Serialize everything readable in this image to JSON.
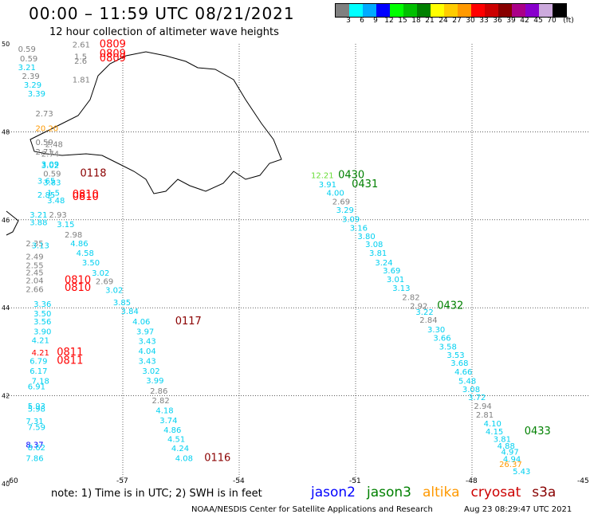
{
  "title": "00:00 – 11:59 UTC 08/21/2021",
  "subtitle": "12 hour collection of altimeter wave heights",
  "scale": {
    "colors": [
      "#808080",
      "#00ffff",
      "#00aaff",
      "#0000ff",
      "#00ff00",
      "#00c000",
      "#008000",
      "#ffff00",
      "#ffcc00",
      "#ff9900",
      "#ff0000",
      "#cc0000",
      "#880000",
      "#aa0088",
      "#8800cc",
      "#ccaadd",
      "#000000"
    ],
    "labels": [
      "3",
      "6",
      "9",
      "12",
      "15",
      "18",
      "21",
      "24",
      "27",
      "30",
      "33",
      "36",
      "39",
      "42",
      "45",
      "70",
      "(ft)"
    ]
  },
  "axes": {
    "lat_labels": [
      "50",
      "48",
      "46",
      "44",
      "42",
      "40"
    ],
    "lon_labels": [
      "-60",
      "-57",
      "-54",
      "-51",
      "-48",
      "-45"
    ]
  },
  "colors": {
    "cyan": "#00d0f0",
    "gray": "#808080",
    "darkred": "#8b0000",
    "red": "#ff0000",
    "green": "#008000",
    "lightgreen": "#66dd33",
    "orange": "#ff9900",
    "blue": "#0000ff"
  },
  "labels": [
    {
      "t": "0.59",
      "c": "gray",
      "lon": -59.7,
      "lat": 49.82
    },
    {
      "t": "0.59",
      "c": "gray",
      "lon": -59.65,
      "lat": 49.6
    },
    {
      "t": "3.21",
      "c": "cyan",
      "lon": -59.7,
      "lat": 49.4
    },
    {
      "t": "2.39",
      "c": "gray",
      "lon": -59.6,
      "lat": 49.2
    },
    {
      "t": "3.29",
      "c": "cyan",
      "lon": -59.55,
      "lat": 49.0
    },
    {
      "t": "3.39",
      "c": "cyan",
      "lon": -59.45,
      "lat": 48.8
    },
    {
      "t": "2.73",
      "c": "gray",
      "lon": -59.25,
      "lat": 48.35
    },
    {
      "t": "20.20",
      "c": "orange",
      "lon": -59.25,
      "lat": 48.02
    },
    {
      "t": "2.61",
      "c": "gray",
      "lon": -58.3,
      "lat": 49.92
    },
    {
      "t": "1.5",
      "c": "gray",
      "lon": -58.25,
      "lat": 49.65
    },
    {
      "t": "2.6",
      "c": "gray",
      "lon": -58.25,
      "lat": 49.55
    },
    {
      "t": "1.81",
      "c": "gray",
      "lon": -58.3,
      "lat": 49.12
    },
    {
      "t": "0809",
      "c": "red",
      "lon": -57.6,
      "lat": 49.92
    },
    {
      "t": "0809",
      "c": "red",
      "lon": -57.6,
      "lat": 49.7
    },
    {
      "t": "0809",
      "c": "red",
      "lon": -57.6,
      "lat": 49.6
    },
    {
      "t": "0.59",
      "c": "gray",
      "lon": -59.25,
      "lat": 47.7
    },
    {
      "t": "2.48",
      "c": "gray",
      "lon": -59.0,
      "lat": 47.65
    },
    {
      "t": "2.74",
      "c": "gray",
      "lon": -59.1,
      "lat": 47.44
    },
    {
      "t": "2.71",
      "c": "gray",
      "lon": -59.25,
      "lat": 47.48
    },
    {
      "t": "3.09",
      "c": "cyan",
      "lon": -59.1,
      "lat": 47.2
    },
    {
      "t": "3.02",
      "c": "cyan",
      "lon": -59.1,
      "lat": 47.17
    },
    {
      "t": "0.59",
      "c": "gray",
      "lon": -59.05,
      "lat": 46.98
    },
    {
      "t": "0118",
      "c": "darkred",
      "lon": -58.1,
      "lat": 46.98
    },
    {
      "t": "3.83",
      "c": "cyan",
      "lon": -59.05,
      "lat": 46.78
    },
    {
      "t": "3.65",
      "c": "cyan",
      "lon": -59.2,
      "lat": 46.82
    },
    {
      "t": "2.85",
      "c": "cyan",
      "lon": -59.2,
      "lat": 46.5
    },
    {
      "t": "1.5",
      "c": "cyan",
      "lon": -58.95,
      "lat": 46.55
    },
    {
      "t": "0810",
      "c": "red",
      "lon": -58.3,
      "lat": 46.5
    },
    {
      "t": "0810",
      "c": "red",
      "lon": -58.3,
      "lat": 46.45
    },
    {
      "t": "3.48",
      "c": "cyan",
      "lon": -58.95,
      "lat": 46.38
    },
    {
      "t": "3.21",
      "c": "cyan",
      "lon": -59.4,
      "lat": 46.05
    },
    {
      "t": "2.93",
      "c": "gray",
      "lon": -58.9,
      "lat": 46.05
    },
    {
      "t": "3.88",
      "c": "cyan",
      "lon": -59.4,
      "lat": 45.88
    },
    {
      "t": "3.15",
      "c": "cyan",
      "lon": -58.7,
      "lat": 45.83
    },
    {
      "t": "2.98",
      "c": "gray",
      "lon": -58.5,
      "lat": 45.6
    },
    {
      "t": "2.35",
      "c": "gray",
      "lon": -59.5,
      "lat": 45.4
    },
    {
      "t": "3.13",
      "c": "cyan",
      "lon": -59.35,
      "lat": 45.35
    },
    {
      "t": "4.86",
      "c": "cyan",
      "lon": -58.35,
      "lat": 45.4
    },
    {
      "t": "2.49",
      "c": "gray",
      "lon": -59.5,
      "lat": 45.1
    },
    {
      "t": "4.58",
      "c": "cyan",
      "lon": -58.2,
      "lat": 45.18
    },
    {
      "t": "2.55",
      "c": "gray",
      "lon": -59.5,
      "lat": 44.9
    },
    {
      "t": "3.50",
      "c": "cyan",
      "lon": -58.05,
      "lat": 44.96
    },
    {
      "t": "2.45",
      "c": "gray",
      "lon": -59.5,
      "lat": 44.74
    },
    {
      "t": "3.02",
      "c": "cyan",
      "lon": -57.8,
      "lat": 44.73
    },
    {
      "t": "2.04",
      "c": "gray",
      "lon": -59.5,
      "lat": 44.56
    },
    {
      "t": "0810",
      "c": "red",
      "lon": -58.5,
      "lat": 44.56
    },
    {
      "t": "2.69",
      "c": "gray",
      "lon": -57.7,
      "lat": 44.54
    },
    {
      "t": "2.66",
      "c": "gray",
      "lon": -59.5,
      "lat": 44.36
    },
    {
      "t": "0810",
      "c": "red",
      "lon": -58.5,
      "lat": 44.38
    },
    {
      "t": "3.02",
      "c": "cyan",
      "lon": -57.45,
      "lat": 44.34
    },
    {
      "t": "3.85",
      "c": "cyan",
      "lon": -57.25,
      "lat": 44.06
    },
    {
      "t": "3.36",
      "c": "cyan",
      "lon": -59.3,
      "lat": 44.02
    },
    {
      "t": "3.84",
      "c": "cyan",
      "lon": -57.05,
      "lat": 43.86
    },
    {
      "t": "3.50",
      "c": "cyan",
      "lon": -59.3,
      "lat": 43.8
    },
    {
      "t": "3.56",
      "c": "cyan",
      "lon": -59.3,
      "lat": 43.62
    },
    {
      "t": "4.06",
      "c": "cyan",
      "lon": -56.75,
      "lat": 43.62
    },
    {
      "t": "0117",
      "c": "darkred",
      "lon": -55.65,
      "lat": 43.62
    },
    {
      "t": "3.90",
      "c": "cyan",
      "lon": -59.3,
      "lat": 43.4
    },
    {
      "t": "3.97",
      "c": "cyan",
      "lon": -56.65,
      "lat": 43.4
    },
    {
      "t": "4.21",
      "c": "cyan",
      "lon": -59.35,
      "lat": 43.2
    },
    {
      "t": "3.43",
      "c": "cyan",
      "lon": -56.6,
      "lat": 43.18
    },
    {
      "t": "4.21",
      "c": "red",
      "lon": -59.35,
      "lat": 42.92
    },
    {
      "t": "0811",
      "c": "red",
      "lon": -58.7,
      "lat": 42.92
    },
    {
      "t": "4.04",
      "c": "cyan",
      "lon": -56.6,
      "lat": 42.95
    },
    {
      "t": "6.79",
      "c": "cyan",
      "lon": -59.4,
      "lat": 42.73
    },
    {
      "t": "0811",
      "c": "red",
      "lon": -58.7,
      "lat": 42.73
    },
    {
      "t": "3.43",
      "c": "cyan",
      "lon": -56.6,
      "lat": 42.73
    },
    {
      "t": "6.17",
      "c": "cyan",
      "lon": -59.4,
      "lat": 42.5
    },
    {
      "t": "3.02",
      "c": "cyan",
      "lon": -56.5,
      "lat": 42.5
    },
    {
      "t": "7.18",
      "c": "cyan",
      "lon": -59.35,
      "lat": 42.27
    },
    {
      "t": "3.99",
      "c": "cyan",
      "lon": -56.4,
      "lat": 42.28
    },
    {
      "t": "6.91",
      "c": "cyan",
      "lon": -59.45,
      "lat": 42.15
    },
    {
      "t": "2.86",
      "c": "gray",
      "lon": -56.3,
      "lat": 42.05
    },
    {
      "t": "2.82",
      "c": "gray",
      "lon": -56.25,
      "lat": 41.83
    },
    {
      "t": "5.93",
      "c": "cyan",
      "lon": -59.45,
      "lat": 41.7
    },
    {
      "t": "5.98",
      "c": "cyan",
      "lon": -59.45,
      "lat": 41.64
    },
    {
      "t": "4.18",
      "c": "cyan",
      "lon": -56.15,
      "lat": 41.6
    },
    {
      "t": "7.31",
      "c": "cyan",
      "lon": -59.5,
      "lat": 41.36
    },
    {
      "t": "3.74",
      "c": "cyan",
      "lon": -56.05,
      "lat": 41.38
    },
    {
      "t": "7.59",
      "c": "cyan",
      "lon": -59.45,
      "lat": 41.22
    },
    {
      "t": "4.86",
      "c": "cyan",
      "lon": -55.95,
      "lat": 41.16
    },
    {
      "t": "4.51",
      "c": "cyan",
      "lon": -55.85,
      "lat": 40.95
    },
    {
      "t": "8.37",
      "c": "blue",
      "lon": -59.5,
      "lat": 40.82
    },
    {
      "t": "8.62",
      "c": "cyan",
      "lon": -59.45,
      "lat": 40.76
    },
    {
      "t": "4.24",
      "c": "cyan",
      "lon": -55.75,
      "lat": 40.74
    },
    {
      "t": "7.86",
      "c": "cyan",
      "lon": -59.5,
      "lat": 40.52
    },
    {
      "t": "4.08",
      "c": "cyan",
      "lon": -55.65,
      "lat": 40.52
    },
    {
      "t": "0116",
      "c": "darkred",
      "lon": -54.9,
      "lat": 40.52
    },
    {
      "t": "12.21",
      "c": "lightgreen",
      "lon": -52.15,
      "lat": 46.95
    },
    {
      "t": "0430",
      "c": "green",
      "lon": -51.45,
      "lat": 46.95
    },
    {
      "t": "3.91",
      "c": "cyan",
      "lon": -51.95,
      "lat": 46.74
    },
    {
      "t": "0431",
      "c": "green",
      "lon": -51.1,
      "lat": 46.74
    },
    {
      "t": "4.00",
      "c": "cyan",
      "lon": -51.75,
      "lat": 46.55
    },
    {
      "t": "2.69",
      "c": "gray",
      "lon": -51.6,
      "lat": 46.35
    },
    {
      "t": "3.29",
      "c": "cyan",
      "lon": -51.5,
      "lat": 46.16
    },
    {
      "t": "3.09",
      "c": "cyan",
      "lon": -51.35,
      "lat": 45.95
    },
    {
      "t": "3.16",
      "c": "cyan",
      "lon": -51.15,
      "lat": 45.75
    },
    {
      "t": "3.80",
      "c": "cyan",
      "lon": -50.95,
      "lat": 45.56
    },
    {
      "t": "3.08",
      "c": "cyan",
      "lon": -50.75,
      "lat": 45.38
    },
    {
      "t": "3.81",
      "c": "cyan",
      "lon": -50.65,
      "lat": 45.18
    },
    {
      "t": "3.24",
      "c": "cyan",
      "lon": -50.5,
      "lat": 44.96
    },
    {
      "t": "3.69",
      "c": "cyan",
      "lon": -50.3,
      "lat": 44.78
    },
    {
      "t": "3.01",
      "c": "cyan",
      "lon": -50.2,
      "lat": 44.58
    },
    {
      "t": "3.13",
      "c": "cyan",
      "lon": -50.05,
      "lat": 44.38
    },
    {
      "t": "2.82",
      "c": "gray",
      "lon": -49.8,
      "lat": 44.18
    },
    {
      "t": "2.92",
      "c": "gray",
      "lon": -49.6,
      "lat": 43.98
    },
    {
      "t": "0432",
      "c": "green",
      "lon": -48.9,
      "lat": 43.98
    },
    {
      "t": "3.22",
      "c": "cyan",
      "lon": -49.45,
      "lat": 43.84
    },
    {
      "t": "2.84",
      "c": "gray",
      "lon": -49.35,
      "lat": 43.66
    },
    {
      "t": "3.30",
      "c": "cyan",
      "lon": -49.15,
      "lat": 43.44
    },
    {
      "t": "3.66",
      "c": "cyan",
      "lon": -49.0,
      "lat": 43.25
    },
    {
      "t": "3.58",
      "c": "cyan",
      "lon": -48.85,
      "lat": 43.05
    },
    {
      "t": "3.53",
      "c": "cyan",
      "lon": -48.65,
      "lat": 42.86
    },
    {
      "t": "3.68",
      "c": "cyan",
      "lon": -48.55,
      "lat": 42.68
    },
    {
      "t": "4.66",
      "c": "cyan",
      "lon": -48.45,
      "lat": 42.48
    },
    {
      "t": "5.48",
      "c": "cyan",
      "lon": -48.35,
      "lat": 42.27
    },
    {
      "t": "3.08",
      "c": "cyan",
      "lon": -48.25,
      "lat": 42.08
    },
    {
      "t": "3.72",
      "c": "cyan",
      "lon": -48.1,
      "lat": 41.9
    },
    {
      "t": "2.94",
      "c": "gray",
      "lon": -47.95,
      "lat": 41.7
    },
    {
      "t": "2.81",
      "c": "gray",
      "lon": -47.9,
      "lat": 41.5
    },
    {
      "t": "4.10",
      "c": "cyan",
      "lon": -47.7,
      "lat": 41.3
    },
    {
      "t": "4.15",
      "c": "cyan",
      "lon": -47.65,
      "lat": 41.12
    },
    {
      "t": "0433",
      "c": "green",
      "lon": -46.65,
      "lat": 41.12
    },
    {
      "t": "3.81",
      "c": "cyan",
      "lon": -47.45,
      "lat": 40.95
    },
    {
      "t": "4.88",
      "c": "cyan",
      "lon": -47.35,
      "lat": 40.8
    },
    {
      "t": "4.97",
      "c": "cyan",
      "lon": -47.25,
      "lat": 40.66
    },
    {
      "t": "4.94",
      "c": "cyan",
      "lon": -47.2,
      "lat": 40.5
    },
    {
      "t": "26.37",
      "c": "orange",
      "lon": -47.3,
      "lat": 40.38
    },
    {
      "t": "5.43",
      "c": "cyan",
      "lon": -46.95,
      "lat": 40.22
    }
  ],
  "note": "note:  1) Time is in UTC;  2) SWH is in feet",
  "legend": [
    {
      "name": "jason2",
      "color": "#0000ff"
    },
    {
      "name": "jason3",
      "color": "#008000"
    },
    {
      "name": "altika",
      "color": "#ff9900"
    },
    {
      "name": "cryosat",
      "color": "#cc0000"
    },
    {
      "name": "s3a",
      "color": "#880000"
    }
  ],
  "footer": {
    "credit": "NOAA/NESDIS Center for Satellite Applications and Research",
    "timestamp": "Aug 23 08:29:47 UTC 2021"
  }
}
